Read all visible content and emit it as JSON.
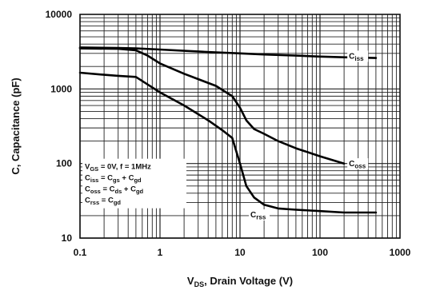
{
  "chart_data": {
    "type": "line",
    "xscale": "log",
    "yscale": "log",
    "xlim": [
      0.1,
      1000
    ],
    "ylim": [
      10,
      10000
    ],
    "grid": true,
    "xlabel_parts": {
      "main": "V",
      "sub": "DS",
      "rest": ", Drain Voltage (V)"
    },
    "ylabel": "C, Capacitance (pF)",
    "xticks": [
      {
        "value": 0.1,
        "label": "0.1"
      },
      {
        "value": 1,
        "label": "1"
      },
      {
        "value": 10,
        "label": "10"
      },
      {
        "value": 100,
        "label": "100"
      },
      {
        "value": 1000,
        "label": "1000"
      }
    ],
    "yticks": [
      {
        "value": 10,
        "label": "10"
      },
      {
        "value": 100,
        "label": "100"
      },
      {
        "value": 1000,
        "label": "1000"
      },
      {
        "value": 10000,
        "label": "10000"
      }
    ],
    "series": [
      {
        "name": "Ciss",
        "label_main": "C",
        "label_sub": "iss",
        "label_at": [
          230,
          2550
        ],
        "x": [
          0.1,
          0.3,
          0.5,
          1,
          2,
          5,
          10,
          20,
          50,
          100,
          200,
          500
        ],
        "y": [
          3600,
          3550,
          3500,
          3380,
          3250,
          3100,
          3000,
          2900,
          2800,
          2720,
          2660,
          2600
        ]
      },
      {
        "name": "Coss",
        "label_main": "C",
        "label_sub": "oss",
        "label_at": [
          230,
          92
        ],
        "x": [
          0.1,
          0.3,
          0.5,
          0.7,
          1,
          2,
          5,
          8,
          10,
          12,
          15,
          20,
          30,
          50,
          100,
          200
        ],
        "y": [
          3500,
          3450,
          3300,
          2800,
          2200,
          1600,
          1100,
          800,
          560,
          380,
          290,
          250,
          200,
          160,
          125,
          100
        ]
      },
      {
        "name": "Crss",
        "label_main": "C",
        "label_sub": "rss",
        "label_at": [
          13.5,
          19
        ],
        "x": [
          0.1,
          0.2,
          0.3,
          0.5,
          0.7,
          1,
          2,
          4,
          6,
          8,
          10,
          12,
          15,
          20,
          30,
          50,
          100,
          200,
          500
        ],
        "y": [
          1650,
          1550,
          1500,
          1450,
          1150,
          900,
          600,
          380,
          280,
          220,
          100,
          50,
          35,
          28,
          25,
          24,
          23,
          22,
          22
        ]
      }
    ],
    "legend_box": {
      "position": "bottom-left",
      "lines": [
        [
          {
            "t": "V"
          },
          {
            "t": "GS",
            "sub": true
          },
          {
            "t": " = 0V, f = 1MHz"
          }
        ],
        [
          {
            "t": "C"
          },
          {
            "t": "iss",
            "sub": true
          },
          {
            "t": " = C"
          },
          {
            "t": "gs",
            "sub": true
          },
          {
            "t": " + C"
          },
          {
            "t": "gd",
            "sub": true
          }
        ],
        [
          {
            "t": "C"
          },
          {
            "t": "oss",
            "sub": true
          },
          {
            "t": " = C"
          },
          {
            "t": "ds",
            "sub": true
          },
          {
            "t": " + C"
          },
          {
            "t": "gd",
            "sub": true
          }
        ],
        [
          {
            "t": "C"
          },
          {
            "t": "rss",
            "sub": true
          },
          {
            "t": " = C"
          },
          {
            "t": "gd",
            "sub": true
          }
        ]
      ]
    }
  }
}
